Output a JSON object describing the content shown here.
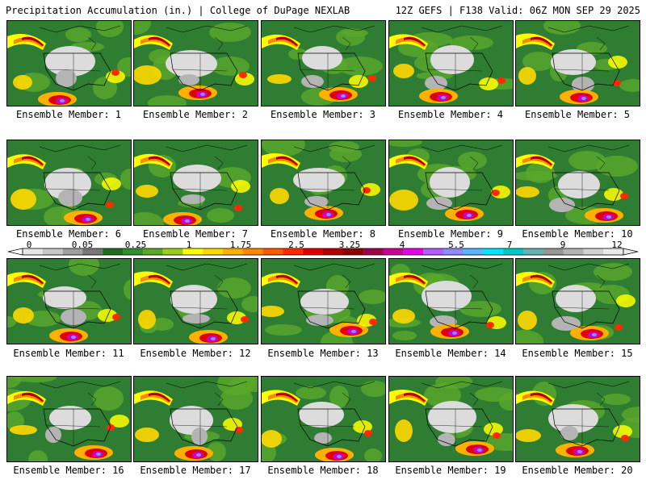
{
  "header": {
    "left": "Precipitation Accumulation (in.) | College of DuPage NEXLAB",
    "right": "12Z GEFS | F138 Valid: 06Z MON SEP 29 2025"
  },
  "panels": [
    "Ensemble Member: 1",
    "Ensemble Member: 2",
    "Ensemble Member: 3",
    "Ensemble Member: 4",
    "Ensemble Member: 5",
    "Ensemble Member: 6",
    "Ensemble Member: 7",
    "Ensemble Member: 8",
    "Ensemble Member: 9",
    "Ensemble Member: 10",
    "Ensemble Member: 11",
    "Ensemble Member: 12",
    "Ensemble Member: 13",
    "Ensemble Member: 14",
    "Ensemble Member: 15",
    "Ensemble Member: 16",
    "Ensemble Member: 17",
    "Ensemble Member: 18",
    "Ensemble Member: 19",
    "Ensemble Member: 20"
  ],
  "colorbar": {
    "tick_labels": [
      "0",
      "0.05",
      "0.25",
      "1",
      "1.75",
      "2.5",
      "3.25",
      "4",
      "5.5",
      "7",
      "9",
      "12"
    ],
    "colors": [
      "#e6e6e6",
      "#c8c8c8",
      "#a0a0a0",
      "#787878",
      "#1e6e1e",
      "#2f8f2f",
      "#5aa82a",
      "#9ccc1a",
      "#ffff00",
      "#ffd800",
      "#ffb000",
      "#ff8800",
      "#ff5a00",
      "#ff2a00",
      "#e00000",
      "#b40000",
      "#8c0000",
      "#a0004a",
      "#c80096",
      "#e600e6",
      "#b45aff",
      "#8c8cff",
      "#5ab4ff",
      "#00e6ff",
      "#00c8c8",
      "#64b4b4",
      "#969696",
      "#b4b4b4",
      "#d2d2d2",
      "#ebebeb"
    ]
  }
}
